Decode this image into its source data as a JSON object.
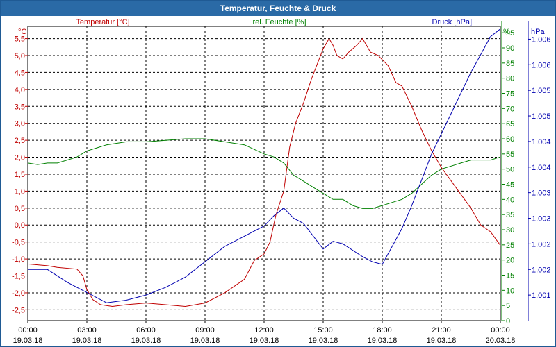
{
  "window": {
    "title": "Temperatur, Feuchte & Druck"
  },
  "colors": {
    "temperature": "#c00000",
    "humidity": "#008000",
    "pressure": "#0000b0",
    "grid": "#000000"
  },
  "chart_data": {
    "type": "line",
    "title": "Temperatur, Feuchte & Druck",
    "x_ticks": [
      {
        "h": 0,
        "time": "00:00",
        "date": "19.03.18"
      },
      {
        "h": 3,
        "time": "03:00",
        "date": "19.03.18"
      },
      {
        "h": 6,
        "time": "06:00",
        "date": "19.03.18"
      },
      {
        "h": 9,
        "time": "09:00",
        "date": "19.03.18"
      },
      {
        "h": 12,
        "time": "12:00",
        "date": "19.03.18"
      },
      {
        "h": 15,
        "time": "15:00",
        "date": "19.03.18"
      },
      {
        "h": 18,
        "time": "18:00",
        "date": "19.03.18"
      },
      {
        "h": 21,
        "time": "21:00",
        "date": "19.03.18"
      },
      {
        "h": 24,
        "time": "00:00",
        "date": "20.03.18"
      }
    ],
    "x_range_hours": [
      0,
      24
    ],
    "axes": {
      "left": {
        "label": "Temperatur [°C]",
        "unit": "°C",
        "range": [
          -2.82,
          5.86
        ],
        "ticks": [
          {
            "v": 5.5,
            "t": "5,5"
          },
          {
            "v": 5.0,
            "t": "5,0"
          },
          {
            "v": 4.5,
            "t": "4,5"
          },
          {
            "v": 4.0,
            "t": "4,0"
          },
          {
            "v": 3.5,
            "t": "3,5"
          },
          {
            "v": 3.0,
            "t": "3,0"
          },
          {
            "v": 2.5,
            "t": "2,5"
          },
          {
            "v": 2.0,
            "t": "2,0"
          },
          {
            "v": 1.5,
            "t": "1,5"
          },
          {
            "v": 1.0,
            "t": "1,0"
          },
          {
            "v": 0.5,
            "t": "0,5"
          },
          {
            "v": 0.0,
            "t": "0,0"
          },
          {
            "v": -0.5,
            "t": "-0,5"
          },
          {
            "v": -1.0,
            "t": "-1,0"
          },
          {
            "v": -1.5,
            "t": "-1,5"
          },
          {
            "v": -2.0,
            "t": "-2,0"
          },
          {
            "v": -2.5,
            "t": "-2,5"
          }
        ]
      },
      "right1": {
        "label": "rel. Feuchte [%]",
        "unit": "%",
        "range": [
          0,
          97.1
        ],
        "ticks": [
          {
            "v": 95,
            "t": "95"
          },
          {
            "v": 90,
            "t": "90"
          },
          {
            "v": 85,
            "t": "85"
          },
          {
            "v": 80,
            "t": "80"
          },
          {
            "v": 75,
            "t": "75"
          },
          {
            "v": 70,
            "t": "70"
          },
          {
            "v": 65,
            "t": "65"
          },
          {
            "v": 60,
            "t": "60"
          },
          {
            "v": 55,
            "t": "55"
          },
          {
            "v": 50,
            "t": "50"
          },
          {
            "v": 45,
            "t": "45"
          },
          {
            "v": 40,
            "t": "40"
          },
          {
            "v": 35,
            "t": "35"
          },
          {
            "v": 30,
            "t": "30"
          },
          {
            "v": 25,
            "t": "25"
          },
          {
            "v": 20,
            "t": "20"
          },
          {
            "v": 15,
            "t": "15"
          },
          {
            "v": 10,
            "t": "10"
          },
          {
            "v": 5,
            "t": "5"
          },
          {
            "v": 0,
            "t": "0"
          }
        ]
      },
      "right2": {
        "label": "Druck [hPa]",
        "unit": "hPa",
        "range": [
          1000.75,
          1006.5
        ],
        "ticks": [
          {
            "v": 1006.25,
            "t": "1.006"
          },
          {
            "v": 1005.75,
            "t": "1.006"
          },
          {
            "v": 1005.25,
            "t": "1.005"
          },
          {
            "v": 1004.75,
            "t": "1.005"
          },
          {
            "v": 1004.25,
            "t": "1.004"
          },
          {
            "v": 1003.75,
            "t": "1.004"
          },
          {
            "v": 1003.25,
            "t": "1.003"
          },
          {
            "v": 1002.75,
            "t": "1.003"
          },
          {
            "v": 1002.25,
            "t": "1.002"
          },
          {
            "v": 1001.75,
            "t": "1.002"
          },
          {
            "v": 1001.25,
            "t": "1.001"
          }
        ]
      }
    },
    "series": [
      {
        "name": "Temperatur [°C]",
        "axis": "left",
        "color": "#c00000",
        "points": [
          [
            0,
            -1.15
          ],
          [
            1,
            -1.2
          ],
          [
            1.5,
            -1.25
          ],
          [
            2.5,
            -1.3
          ],
          [
            2.8,
            -1.5
          ],
          [
            3,
            -1.9
          ],
          [
            3.3,
            -2.2
          ],
          [
            3.7,
            -2.35
          ],
          [
            4.3,
            -2.4
          ],
          [
            5,
            -2.35
          ],
          [
            6,
            -2.3
          ],
          [
            7,
            -2.35
          ],
          [
            8,
            -2.4
          ],
          [
            9,
            -2.3
          ],
          [
            10,
            -2.0
          ],
          [
            11,
            -1.6
          ],
          [
            11.5,
            -1.05
          ],
          [
            12,
            -0.85
          ],
          [
            12.3,
            -0.5
          ],
          [
            12.6,
            0.3
          ],
          [
            13,
            1.0
          ],
          [
            13.3,
            2.3
          ],
          [
            13.6,
            3.0
          ],
          [
            14,
            3.6
          ],
          [
            14.4,
            4.3
          ],
          [
            14.8,
            4.9
          ],
          [
            15,
            5.2
          ],
          [
            15.3,
            5.5
          ],
          [
            15.5,
            5.3
          ],
          [
            15.7,
            5.0
          ],
          [
            16,
            4.9
          ],
          [
            16.3,
            5.1
          ],
          [
            16.7,
            5.3
          ],
          [
            17,
            5.5
          ],
          [
            17.4,
            5.1
          ],
          [
            17.8,
            5.0
          ],
          [
            18.3,
            4.7
          ],
          [
            18.7,
            4.2
          ],
          [
            19,
            4.1
          ],
          [
            19.5,
            3.5
          ],
          [
            20,
            2.8
          ],
          [
            20.5,
            2.2
          ],
          [
            21,
            1.7
          ],
          [
            21.5,
            1.3
          ],
          [
            22,
            0.9
          ],
          [
            22.5,
            0.5
          ],
          [
            23,
            0.0
          ],
          [
            23.5,
            -0.2
          ],
          [
            24,
            -0.6
          ]
        ]
      },
      {
        "name": "rel. Feuchte [%]",
        "axis": "right1",
        "color": "#008000",
        "points": [
          [
            0,
            52
          ],
          [
            0.5,
            51.5
          ],
          [
            1,
            52
          ],
          [
            1.5,
            52
          ],
          [
            2,
            53
          ],
          [
            2.5,
            54
          ],
          [
            3,
            56
          ],
          [
            3.5,
            57
          ],
          [
            4,
            58
          ],
          [
            5,
            59
          ],
          [
            6,
            59
          ],
          [
            7,
            59.5
          ],
          [
            8,
            60
          ],
          [
            9,
            60
          ],
          [
            10,
            59
          ],
          [
            11,
            58
          ],
          [
            12,
            55
          ],
          [
            12.5,
            54
          ],
          [
            13,
            52
          ],
          [
            13.5,
            48
          ],
          [
            14,
            46
          ],
          [
            14.5,
            44
          ],
          [
            15,
            42
          ],
          [
            15.5,
            40
          ],
          [
            16,
            40
          ],
          [
            16.5,
            38
          ],
          [
            17,
            37
          ],
          [
            17.5,
            37
          ],
          [
            18,
            38
          ],
          [
            18.5,
            39
          ],
          [
            19,
            40
          ],
          [
            19.5,
            42
          ],
          [
            20,
            45
          ],
          [
            20.5,
            48
          ],
          [
            21,
            50
          ],
          [
            21.5,
            51
          ],
          [
            22,
            52
          ],
          [
            22.5,
            53
          ],
          [
            23,
            53
          ],
          [
            23.5,
            53
          ],
          [
            24,
            54
          ]
        ]
      },
      {
        "name": "Druck [hPa]",
        "axis": "right2",
        "color": "#0000b0",
        "points": [
          [
            0,
            1001.75
          ],
          [
            1,
            1001.75
          ],
          [
            2,
            1001.5
          ],
          [
            2.5,
            1001.4
          ],
          [
            3,
            1001.3
          ],
          [
            3.5,
            1001.2
          ],
          [
            4,
            1001.1
          ],
          [
            5,
            1001.15
          ],
          [
            6,
            1001.25
          ],
          [
            7,
            1001.4
          ],
          [
            8,
            1001.6
          ],
          [
            9,
            1001.9
          ],
          [
            10,
            1002.2
          ],
          [
            11,
            1002.4
          ],
          [
            12,
            1002.6
          ],
          [
            12.5,
            1002.8
          ],
          [
            13,
            1002.95
          ],
          [
            13.5,
            1002.75
          ],
          [
            14,
            1002.65
          ],
          [
            14.5,
            1002.4
          ],
          [
            15,
            1002.15
          ],
          [
            15.5,
            1002.3
          ],
          [
            16,
            1002.25
          ],
          [
            17,
            1002.0
          ],
          [
            17.5,
            1001.9
          ],
          [
            18,
            1001.85
          ],
          [
            18.5,
            1002.2
          ],
          [
            19,
            1002.55
          ],
          [
            19.5,
            1003.0
          ],
          [
            20,
            1003.5
          ],
          [
            20.5,
            1004.0
          ],
          [
            21,
            1004.4
          ],
          [
            21.5,
            1004.8
          ],
          [
            22,
            1005.2
          ],
          [
            22.5,
            1005.6
          ],
          [
            23,
            1005.95
          ],
          [
            23.5,
            1006.3
          ],
          [
            24,
            1006.45
          ]
        ]
      }
    ]
  }
}
